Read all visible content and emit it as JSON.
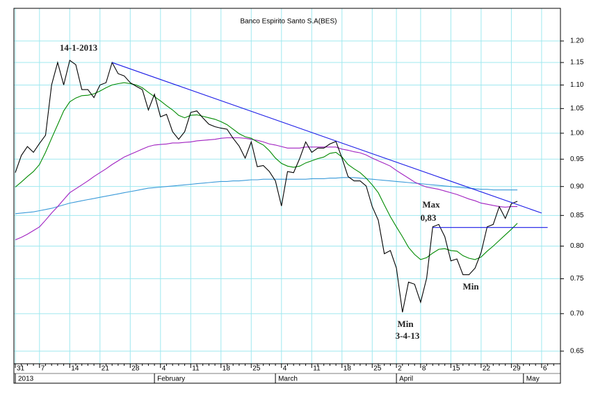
{
  "chart_data": {
    "type": "line",
    "title": "Banco Espirito Santo S.A(BES)",
    "yscale": "log",
    "grid": true,
    "grid_color": "#9fe8ef",
    "ylim": [
      0.634,
      1.28
    ],
    "yticks": [
      0.65,
      {
        "value": 0.7,
        "label": "0.70"
      },
      0.75,
      {
        "value": 0.8,
        "label": "0.80"
      },
      0.85,
      {
        "value": 0.9,
        "label": "0.90"
      },
      0.95,
      {
        "value": 1.0,
        "label": "1.00"
      },
      1.05,
      {
        "value": 1.1,
        "label": "1.10"
      },
      1.15,
      {
        "value": 1.2,
        "label": "1.20"
      }
    ],
    "categories": [
      "31",
      null,
      null,
      null,
      "7",
      null,
      null,
      null,
      null,
      "14",
      null,
      null,
      null,
      null,
      "21",
      null,
      null,
      null,
      null,
      "28",
      null,
      null,
      null,
      null,
      "4",
      null,
      null,
      null,
      null,
      "11",
      null,
      null,
      null,
      null,
      "18",
      null,
      null,
      null,
      null,
      "25",
      null,
      null,
      null,
      null,
      "4",
      null,
      null,
      null,
      null,
      "11",
      null,
      null,
      null,
      null,
      "18",
      null,
      null,
      null,
      null,
      "25",
      null,
      null,
      null,
      "2",
      null,
      null,
      null,
      "8",
      null,
      null,
      null,
      null,
      "15",
      null,
      null,
      null,
      null,
      "22",
      null,
      null,
      null,
      null,
      "29",
      null,
      null,
      null,
      null,
      "6",
      null,
      null
    ],
    "months": [
      "2013",
      null,
      null,
      null,
      null,
      null,
      null,
      null,
      null,
      null,
      null,
      null,
      null,
      null,
      null,
      null,
      null,
      null,
      null,
      null,
      null,
      null,
      null,
      "February",
      null,
      null,
      null,
      null,
      null,
      null,
      null,
      null,
      null,
      null,
      null,
      null,
      null,
      null,
      null,
      null,
      null,
      null,
      null,
      "March",
      null,
      null,
      null,
      null,
      null,
      null,
      null,
      null,
      null,
      null,
      null,
      null,
      null,
      null,
      null,
      null,
      null,
      null,
      null,
      "April",
      null,
      null,
      null,
      null,
      null,
      null,
      null,
      null,
      null,
      null,
      null,
      null,
      null,
      null,
      null,
      null,
      null,
      null,
      null,
      null,
      "May",
      null,
      null,
      null,
      null,
      null
    ],
    "series": [
      {
        "color": "#3a9ad9",
        "values": [
          0.853,
          0.854,
          0.855,
          0.856,
          0.858,
          0.86,
          0.862,
          0.865,
          0.868,
          0.871,
          0.873,
          0.875,
          0.877,
          0.879,
          0.881,
          0.883,
          0.885,
          0.887,
          0.889,
          0.891,
          0.893,
          0.895,
          0.897,
          0.898,
          0.899,
          0.9,
          0.901,
          0.902,
          0.903,
          0.904,
          0.905,
          0.906,
          0.907,
          0.908,
          0.909,
          0.909,
          0.91,
          0.91,
          0.911,
          0.912,
          0.912,
          0.913,
          0.913,
          0.913,
          0.913,
          0.913,
          0.913,
          0.913,
          0.913,
          0.914,
          0.914,
          0.914,
          0.915,
          0.915,
          0.916,
          0.916,
          0.916,
          0.915,
          0.914,
          0.913,
          0.912,
          0.911,
          0.91,
          0.909,
          0.908,
          0.907,
          0.906,
          0.905,
          0.904,
          0.903,
          0.902,
          0.901,
          0.9,
          0.899,
          0.898,
          0.897,
          0.896,
          0.895,
          0.895,
          0.894,
          0.894,
          0.894,
          0.894,
          0.894,
          null,
          null,
          null,
          null,
          null,
          null
        ]
      },
      {
        "color": "#a020c0",
        "values": [
          0.81,
          0.814,
          0.819,
          0.825,
          0.831,
          0.842,
          0.854,
          0.865,
          0.877,
          0.889,
          0.896,
          0.903,
          0.91,
          0.918,
          0.925,
          0.932,
          0.94,
          0.947,
          0.954,
          0.959,
          0.964,
          0.969,
          0.974,
          0.977,
          0.978,
          0.979,
          0.981,
          0.981,
          0.982,
          0.983,
          0.985,
          0.986,
          0.987,
          0.988,
          0.99,
          0.991,
          0.991,
          0.991,
          0.99,
          0.988,
          0.986,
          0.983,
          0.979,
          0.977,
          0.974,
          0.971,
          0.971,
          0.971,
          0.973,
          0.973,
          0.973,
          0.973,
          0.973,
          0.973,
          0.969,
          0.967,
          0.964,
          0.962,
          0.958,
          0.952,
          0.947,
          0.942,
          0.937,
          0.929,
          0.922,
          0.915,
          0.908,
          0.903,
          0.899,
          0.897,
          0.895,
          0.892,
          0.889,
          0.886,
          0.882,
          0.878,
          0.875,
          0.871,
          0.869,
          0.867,
          0.865,
          0.864,
          0.865,
          0.865,
          null,
          null,
          null,
          null,
          null,
          null
        ]
      },
      {
        "color": "#008a00",
        "values": [
          0.899,
          0.908,
          0.918,
          0.927,
          0.94,
          0.963,
          0.99,
          1.017,
          1.045,
          1.064,
          1.072,
          1.077,
          1.078,
          1.081,
          1.087,
          1.094,
          1.1,
          1.103,
          1.105,
          1.103,
          1.1,
          1.094,
          1.084,
          1.075,
          1.066,
          1.056,
          1.047,
          1.036,
          1.031,
          1.036,
          1.037,
          1.034,
          1.031,
          1.028,
          1.023,
          1.017,
          1.008,
          0.999,
          0.993,
          0.99,
          0.983,
          0.977,
          0.966,
          0.952,
          0.942,
          0.937,
          0.935,
          0.937,
          0.943,
          0.947,
          0.951,
          0.954,
          0.961,
          0.963,
          0.954,
          0.94,
          0.932,
          0.925,
          0.915,
          0.903,
          0.889,
          0.868,
          0.848,
          0.831,
          0.815,
          0.798,
          0.787,
          0.779,
          0.782,
          0.789,
          0.795,
          0.796,
          0.793,
          0.792,
          0.785,
          0.781,
          0.779,
          0.783,
          0.792,
          0.8,
          0.809,
          0.818,
          0.827,
          0.837,
          null,
          null,
          null,
          null,
          null,
          null
        ]
      },
      {
        "color": "#000000",
        "values": [
          0.925,
          0.957,
          0.974,
          0.963,
          0.98,
          0.996,
          1.1,
          1.15,
          1.1,
          1.155,
          1.145,
          1.09,
          1.09,
          1.073,
          1.1,
          1.105,
          1.15,
          1.125,
          1.12,
          1.105,
          1.097,
          1.09,
          1.047,
          1.08,
          1.033,
          1.038,
          1.003,
          0.988,
          1.003,
          1.042,
          1.045,
          1.031,
          1.018,
          1.013,
          1.01,
          1.008,
          0.99,
          0.975,
          0.952,
          0.983,
          0.936,
          0.938,
          0.927,
          0.91,
          0.866,
          0.927,
          0.925,
          0.951,
          0.983,
          0.963,
          0.971,
          0.971,
          0.979,
          0.984,
          0.952,
          0.918,
          0.91,
          0.91,
          0.901,
          0.865,
          0.842,
          0.788,
          0.793,
          0.766,
          0.702,
          0.745,
          0.742,
          0.716,
          0.751,
          0.831,
          0.835,
          0.815,
          0.777,
          0.78,
          0.756,
          0.756,
          0.766,
          0.79,
          0.831,
          0.835,
          0.865,
          0.845,
          0.87,
          0.874,
          null,
          null,
          null,
          null,
          null,
          null
        ]
      }
    ],
    "lines": [
      {
        "from": [
          16,
          1.15
        ],
        "to": [
          87,
          0.854
        ],
        "color": "#1a1ae6"
      },
      {
        "from": [
          69,
          0.83
        ],
        "to": [
          88,
          0.83
        ],
        "color": "#1a1ae6"
      }
    ],
    "annotations": [
      "14-1-2013",
      "Max",
      "0,83",
      "Min",
      "Min",
      "3-4-13"
    ]
  }
}
